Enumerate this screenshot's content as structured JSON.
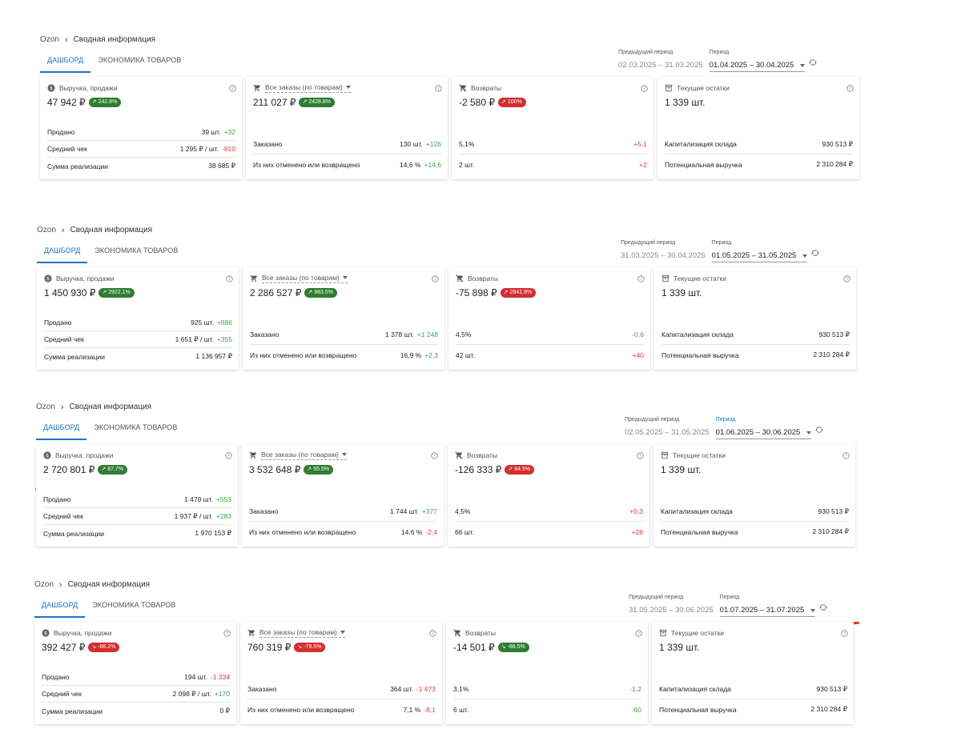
{
  "blocks": [
    {
      "breadcrumb": {
        "root": "Ozon",
        "current": "Сводная информация"
      },
      "tabs": [
        {
          "label": "ДАШБОРД"
        },
        {
          "label": "ЭКОНОМИКА ТОВАРОВ"
        }
      ],
      "previous_period": {
        "label": "Предыдущий период",
        "value": "02.03.2025 – 31.03.2025"
      },
      "current_period": {
        "label": "Период",
        "value": "01.04.2025 – 30.04.2025"
      },
      "revenue": {
        "title": "Выручка, продажи",
        "value": "47 942 ₽",
        "badge": "242.8%",
        "badge_color": "green",
        "trend": "up",
        "rows": [
          {
            "label": "Продано",
            "value": "39 шт.",
            "delta": "+32",
            "delta_color": "green"
          },
          {
            "label": "Средний чек",
            "value": "1 295 ₽ / шт.",
            "delta": "-810",
            "delta_color": "red"
          },
          {
            "label": "Сумма реализации",
            "value": "38 685 ₽",
            "delta": "",
            "delta_color": ""
          }
        ]
      },
      "orders": {
        "title": "Все заказы (по товарам)",
        "value": "211 027 ₽",
        "badge": "2428.8%",
        "badge_color": "green",
        "trend": "up",
        "rows": [
          {
            "label": "Заказано",
            "value": "130 шт.",
            "delta": "+126",
            "delta_color": "green"
          },
          {
            "label": "Из них отменено или возвращено",
            "value": "14,6 %",
            "delta": "+14,6",
            "delta_color": "green"
          }
        ]
      },
      "returns": {
        "title": "Возвраты",
        "value": "-2 580 ₽",
        "badge": "100%",
        "badge_color": "red",
        "trend": "up",
        "rows": [
          {
            "label": "5,1%",
            "value": "",
            "delta": "+5,1",
            "delta_color": "red"
          },
          {
            "label": "2 шт.",
            "value": "",
            "delta": "+2",
            "delta_color": "red"
          }
        ]
      },
      "stock": {
        "title": "Текущие остатки",
        "value": "1 339 шт.",
        "rows": [
          {
            "label": "Капитализация склада",
            "value": "930 513 ₽"
          },
          {
            "label": "Потенциальная выручка",
            "value": "2 310 284 ₽"
          }
        ]
      }
    },
    {
      "breadcrumb": {
        "root": "Ozon",
        "current": "Сводная информация"
      },
      "tabs": [
        {
          "label": "ДАШБОРД"
        },
        {
          "label": "ЭКОНОМИКА ТОВАРОВ"
        }
      ],
      "previous_period": {
        "label": "Предыдущий период",
        "value": "31.03.2025 – 30.04.2025"
      },
      "current_period": {
        "label": "Период",
        "value": "01.05.2025 – 31.05.2025"
      },
      "revenue": {
        "title": "Выручка, продажи",
        "value": "1 450 930 ₽",
        "badge": "2922.1%",
        "badge_color": "green",
        "trend": "up",
        "rows": [
          {
            "label": "Продано",
            "value": "925 шт.",
            "delta": "+886",
            "delta_color": "green"
          },
          {
            "label": "Средний чек",
            "value": "1 651 ₽ / шт.",
            "delta": "+355",
            "delta_color": "green"
          },
          {
            "label": "Сумма реализации",
            "value": "1 136 957 ₽",
            "delta": "",
            "delta_color": ""
          }
        ]
      },
      "orders": {
        "title": "Все заказы (по товарам)",
        "value": "2 286 527 ₽",
        "badge": "983.5%",
        "badge_color": "green",
        "trend": "up",
        "rows": [
          {
            "label": "Заказано",
            "value": "1 378 шт.",
            "delta": "+1 248",
            "delta_color": "green"
          },
          {
            "label": "Из них отменено или возвращено",
            "value": "16,9 %",
            "delta": "+2,3",
            "delta_color": "green"
          }
        ]
      },
      "returns": {
        "title": "Возвраты",
        "value": "-75 898 ₽",
        "badge": "2841.8%",
        "badge_color": "red",
        "trend": "up",
        "rows": [
          {
            "label": "4,5%",
            "value": "",
            "delta": "-0,6",
            "delta_color": "green"
          },
          {
            "label": "42 шт.",
            "value": "",
            "delta": "+40",
            "delta_color": "red"
          }
        ]
      },
      "stock": {
        "title": "Текущие остатки",
        "value": "1 339 шт.",
        "rows": [
          {
            "label": "Капитализация склада",
            "value": "930 513 ₽"
          },
          {
            "label": "Потенциальная выручка",
            "value": "2 310 284 ₽"
          }
        ]
      }
    },
    {
      "breadcrumb": {
        "root": "Ozon",
        "current": "Сводная информация"
      },
      "tabs": [
        {
          "label": "ДАШБОРД"
        },
        {
          "label": "ЭКОНОМИКА ТОВАРОВ"
        }
      ],
      "previous_period": {
        "label": "Предыдущий период",
        "value": "02.05.2025 – 31.05.2025"
      },
      "current_period": {
        "label": "Период",
        "value": "01.06.2025 – 30.06.2025"
      },
      "revenue": {
        "title": "Выручка, продажи",
        "value": "2 720 801 ₽",
        "badge": "87.7%",
        "badge_color": "green",
        "trend": "up",
        "rows": [
          {
            "label": "Продано",
            "value": "1 470 шт.",
            "delta": "+553",
            "delta_color": "green"
          },
          {
            "label": "Средний чек",
            "value": "1 937 ₽ / шт.",
            "delta": "+283",
            "delta_color": "green"
          },
          {
            "label": "Сумма реализации",
            "value": "1 970 153 ₽",
            "delta": "",
            "delta_color": ""
          }
        ]
      },
      "orders": {
        "title": "Все заказы (по товарам)",
        "value": "3 532 648 ₽",
        "badge": "55.5%",
        "badge_color": "green",
        "trend": "up",
        "rows": [
          {
            "label": "Заказано",
            "value": "1 744 шт.",
            "delta": "+377",
            "delta_color": "green"
          },
          {
            "label": "Из них отменено или возвращено",
            "value": "14,6 %",
            "delta": "-2,4",
            "delta_color": "red"
          }
        ]
      },
      "returns": {
        "title": "Возвраты",
        "value": "-126 333 ₽",
        "badge": "84.5%",
        "badge_color": "red",
        "trend": "up",
        "rows": [
          {
            "label": "4,5%",
            "value": "",
            "delta": "+0,3",
            "delta_color": "red"
          },
          {
            "label": "66 шт.",
            "value": "",
            "delta": "+28",
            "delta_color": "red"
          }
        ]
      },
      "stock": {
        "title": "Текущие остатки",
        "value": "1 339 шт.",
        "rows": [
          {
            "label": "Капитализация склада",
            "value": "930 513 ₽"
          },
          {
            "label": "Потенциальная выручка",
            "value": "2 310 284 ₽"
          }
        ]
      }
    },
    {
      "breadcrumb": {
        "root": "Ozon",
        "current": "Сводная информация"
      },
      "tabs": [
        {
          "label": "ДАШБОРД"
        },
        {
          "label": "ЭКОНОМИКА ТОВАРОВ"
        }
      ],
      "previous_period": {
        "label": "Предыдущий период",
        "value": "31.05.2025 – 30.06.2025"
      },
      "current_period": {
        "label": "Период",
        "value": "01.07.2025 – 31.07.2025"
      },
      "revenue": {
        "title": "Выручка, продажи",
        "value": "392 427 ₽",
        "badge": "-86.2%",
        "badge_color": "red",
        "trend": "down",
        "rows": [
          {
            "label": "Продано",
            "value": "194 шт.",
            "delta": "-1 334",
            "delta_color": "red"
          },
          {
            "label": "Средний чек",
            "value": "2 098 ₽ / шт.",
            "delta": "+170",
            "delta_color": "green"
          },
          {
            "label": "Сумма реализации",
            "value": "0 ₽",
            "delta": "",
            "delta_color": ""
          }
        ]
      },
      "orders": {
        "title": "Все заказы (по товарам)",
        "value": "760 319 ₽",
        "badge": "-79.5%",
        "badge_color": "red",
        "trend": "down",
        "rows": [
          {
            "label": "Заказано",
            "value": "364 шт.",
            "delta": "-1 473",
            "delta_color": "red"
          },
          {
            "label": "Из них отменено или возвращено",
            "value": "7,1 %",
            "delta": "-8,1",
            "delta_color": "red"
          }
        ]
      },
      "returns": {
        "title": "Возвраты",
        "value": "-14 501 ₽",
        "badge": "-88.5%",
        "badge_color": "green",
        "trend": "down",
        "rows": [
          {
            "label": "3,1%",
            "value": "",
            "delta": "-1,2",
            "delta_color": "green"
          },
          {
            "label": "6 шт.",
            "value": "",
            "delta": "-60",
            "delta_color": "green"
          }
        ]
      },
      "stock": {
        "title": "Текущие остатки",
        "value": "1 339 шт.",
        "rows": [
          {
            "label": "Капитализация склада",
            "value": "930 513 ₽"
          },
          {
            "label": "Потенциальная выручка",
            "value": "2 310 284 ₽"
          }
        ]
      }
    }
  ],
  "colors": {
    "accent": "#1a73c8",
    "positive": "#43a047",
    "negative": "#e53935",
    "annotation": "#e03a2e"
  }
}
